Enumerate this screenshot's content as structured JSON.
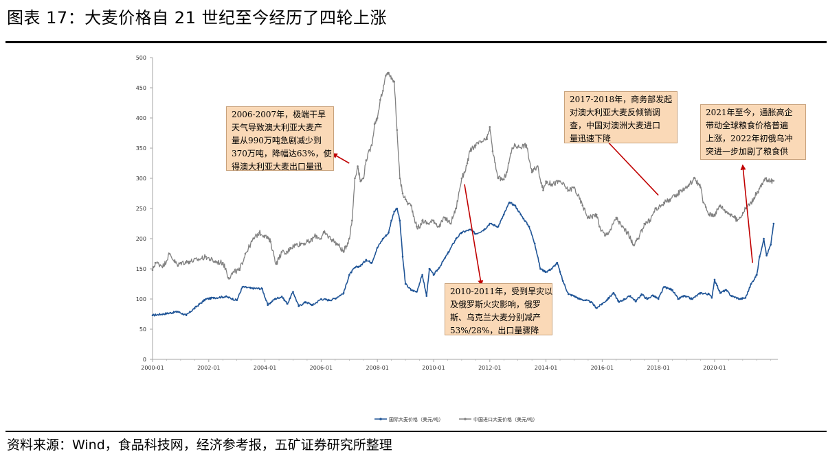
{
  "page": {
    "title": "图表 17：大麦价格自 21 世纪至今经历了四轮上涨",
    "source": "资料来源：Wind，食品科技网，经济参考报，五矿证券研究所整理"
  },
  "annotations": [
    {
      "id": "ann-2006",
      "lines": [
        "2006-2007年，极端干旱",
        "天气导致澳大利亚大麦产",
        "量从990万吨急剧减少到",
        "370万吨，降幅达63%，使",
        "得澳大利亚大麦出口量迅"
      ]
    },
    {
      "id": "ann-2010",
      "lines": [
        "2010-2011年，受到旱灾以",
        "及俄罗斯火灾影响，俄罗",
        "斯、乌克兰大麦分别减产",
        "53%/28%，出口量骤降"
      ]
    },
    {
      "id": "ann-2017",
      "lines": [
        "2017-2018年，商务部发起",
        "对澳大利亚大麦反倾销调",
        "查，中国对澳洲大麦进口",
        "量迅速下降"
      ]
    },
    {
      "id": "ann-2021",
      "lines": [
        "2021年至今，通胀高企",
        "带动全球粮食价格普遍",
        "上涨，2022年初俄乌冲",
        "突进一步加剧了粮食供"
      ]
    }
  ],
  "chart_data": {
    "type": "line",
    "title": "",
    "xlabel": "",
    "ylabel": "",
    "xlim": [
      2000.0,
      2022.25
    ],
    "ylim": [
      0,
      500
    ],
    "y_ticks": [
      "0",
      "50",
      "100",
      "150",
      "200",
      "250",
      "300",
      "350",
      "400",
      "450",
      "500"
    ],
    "x_ticks": [
      "2000-01",
      "2002-01",
      "2004-01",
      "2006-01",
      "2008-01",
      "2010-01",
      "2012-01",
      "2014-01",
      "2016-01",
      "2018-01",
      "2020-01"
    ],
    "legend_position": "bottom-center",
    "colors": {
      "intl": "#1f5496",
      "china": "#808080",
      "arrow": "#c00000",
      "axis": "#a6a6a6"
    },
    "series": [
      {
        "name": "国际大麦价格（美元/吨）",
        "key": "intl",
        "x": [
          2000.0,
          2000.5,
          2000.9,
          2001.2,
          2001.5,
          2001.9,
          2002.2,
          2002.6,
          2003.0,
          2003.2,
          2003.5,
          2003.9,
          2004.1,
          2004.35,
          2004.6,
          2004.8,
          2005.0,
          2005.2,
          2005.45,
          2005.7,
          2006.0,
          2006.3,
          2006.5,
          2006.8,
          2007.0,
          2007.2,
          2007.4,
          2007.6,
          2007.8,
          2008.0,
          2008.2,
          2008.4,
          2008.5,
          2008.6,
          2008.7,
          2008.8,
          2008.9,
          2009.0,
          2009.2,
          2009.4,
          2009.6,
          2009.75,
          2009.85,
          2010.0,
          2010.2,
          2010.5,
          2010.8,
          2011.0,
          2011.3,
          2011.5,
          2011.8,
          2012.0,
          2012.3,
          2012.5,
          2012.7,
          2012.9,
          2013.1,
          2013.4,
          2013.6,
          2013.8,
          2014.0,
          2014.2,
          2014.4,
          2014.5,
          2014.6,
          2014.8,
          2015.0,
          2015.2,
          2015.4,
          2015.6,
          2015.8,
          2016.0,
          2016.2,
          2016.4,
          2016.6,
          2016.8,
          2017.0,
          2017.2,
          2017.4,
          2017.6,
          2017.8,
          2018.0,
          2018.2,
          2018.5,
          2018.7,
          2018.9,
          2019.2,
          2019.5,
          2019.8,
          2019.9,
          2020.0,
          2020.2,
          2020.4,
          2020.6,
          2020.9,
          2021.1,
          2021.3,
          2021.5,
          2021.6,
          2021.75,
          2021.85,
          2022.0,
          2022.1
        ],
        "values": [
          73,
          76,
          79,
          73,
          85,
          100,
          102,
          104,
          98,
          120,
          118,
          117,
          90,
          100,
          104,
          92,
          112,
          88,
          95,
          90,
          100,
          98,
          101,
          110,
          140,
          152,
          155,
          165,
          160,
          185,
          200,
          210,
          230,
          245,
          250,
          230,
          170,
          125,
          115,
          112,
          140,
          105,
          150,
          140,
          152,
          175,
          200,
          210,
          215,
          208,
          215,
          225,
          220,
          240,
          260,
          255,
          240,
          220,
          192,
          150,
          145,
          150,
          160,
          145,
          130,
          108,
          105,
          100,
          98,
          95,
          85,
          92,
          100,
          110,
          95,
          100,
          105,
          96,
          108,
          100,
          106,
          100,
          120,
          115,
          100,
          105,
          100,
          110,
          108,
          102,
          132,
          110,
          115,
          105,
          100,
          102,
          125,
          140,
          170,
          200,
          172,
          190,
          225
        ]
      },
      {
        "name": "中国进口大麦价格（美元/吨）",
        "key": "china",
        "x": [
          2000.0,
          2000.1,
          2000.4,
          2000.6,
          2000.9,
          2001.0,
          2001.3,
          2001.6,
          2001.9,
          2002.2,
          2002.5,
          2002.6,
          2002.7,
          2002.9,
          2003.1,
          2003.3,
          2003.6,
          2003.8,
          2004.0,
          2004.2,
          2004.4,
          2004.6,
          2004.75,
          2004.9,
          2005.1,
          2005.3,
          2005.6,
          2005.8,
          2006.0,
          2006.1,
          2006.4,
          2006.6,
          2006.8,
          2007.0,
          2007.1,
          2007.2,
          2007.3,
          2007.4,
          2007.5,
          2007.6,
          2007.8,
          2007.9,
          2008.0,
          2008.1,
          2008.2,
          2008.3,
          2008.4,
          2008.5,
          2008.6,
          2008.7,
          2008.8,
          2008.9,
          2009.0,
          2009.1,
          2009.2,
          2009.4,
          2009.5,
          2009.6,
          2009.8,
          2010.0,
          2010.2,
          2010.4,
          2010.6,
          2010.8,
          2011.0,
          2011.1,
          2011.2,
          2011.3,
          2011.5,
          2011.7,
          2011.9,
          2012.0,
          2012.1,
          2012.3,
          2012.5,
          2012.6,
          2012.8,
          2012.9,
          2013.0,
          2013.3,
          2013.5,
          2013.7,
          2013.9,
          2014.0,
          2014.2,
          2014.5,
          2014.8,
          2015.0,
          2015.3,
          2015.5,
          2015.8,
          2015.9,
          2016.1,
          2016.3,
          2016.5,
          2016.7,
          2016.9,
          2017.1,
          2017.3,
          2017.5,
          2017.7,
          2017.9,
          2018.0,
          2018.2,
          2018.4,
          2018.6,
          2018.8,
          2019.0,
          2019.1,
          2019.3,
          2019.5,
          2019.6,
          2019.8,
          2020.0,
          2020.2,
          2020.4,
          2020.6,
          2020.8,
          2020.9,
          2021.1,
          2021.3,
          2021.5,
          2021.7,
          2021.8,
          2021.9,
          2022.0,
          2022.1
        ],
        "values": [
          148,
          160,
          155,
          175,
          155,
          160,
          162,
          165,
          170,
          162,
          160,
          150,
          135,
          145,
          148,
          175,
          200,
          210,
          205,
          195,
          158,
          178,
          175,
          185,
          190,
          192,
          195,
          205,
          200,
          210,
          198,
          190,
          178,
          200,
          230,
          300,
          320,
          295,
          300,
          330,
          355,
          390,
          400,
          430,
          445,
          470,
          475,
          465,
          460,
          380,
          300,
          275,
          265,
          258,
          255,
          220,
          218,
          230,
          225,
          230,
          220,
          235,
          225,
          250,
          300,
          310,
          325,
          345,
          355,
          360,
          365,
          385,
          345,
          300,
          298,
          310,
          350,
          355,
          352,
          355,
          310,
          320,
          280,
          295,
          290,
          295,
          280,
          285,
          255,
          235,
          240,
          220,
          205,
          215,
          235,
          220,
          210,
          190,
          200,
          225,
          230,
          250,
          250,
          260,
          265,
          270,
          280,
          285,
          290,
          300,
          285,
          260,
          240,
          240,
          255,
          245,
          240,
          230,
          235,
          250,
          260,
          275,
          290,
          300,
          295,
          295,
          296
        ]
      }
    ],
    "arrows": [
      {
        "from": [
          2007.0,
          325
        ],
        "to": [
          2006.4,
          341
        ]
      },
      {
        "from": [
          2011.1,
          290
        ],
        "to": [
          2011.7,
          123
        ]
      },
      {
        "from": [
          2018.0,
          272
        ],
        "to": [
          2015.7,
          385
        ]
      },
      {
        "from": [
          2021.35,
          160
        ],
        "to": [
          2021.0,
          322
        ]
      }
    ]
  }
}
